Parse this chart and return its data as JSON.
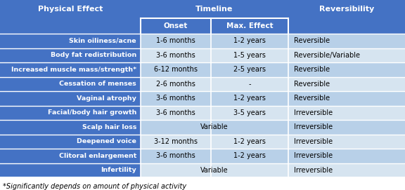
{
  "rows": [
    [
      "Skin oiliness/acne",
      "1-6 months",
      "1-2 years",
      "Reversible"
    ],
    [
      "Body fat redistribution",
      "3-6 months",
      "1-5 years",
      "Reversible/Variable"
    ],
    [
      "Increased muscle mass/strength*",
      "6-12 months",
      "2-5 years",
      "Reversible"
    ],
    [
      "Cessation of menses",
      "2-6 months",
      "-",
      "Reversible"
    ],
    [
      "Vaginal atrophy",
      "3-6 months",
      "1-2 years",
      "Reversible"
    ],
    [
      "Facial/body hair growth",
      "3-6 months",
      "3-5 years",
      "Irreversible"
    ],
    [
      "Scalp hair loss",
      "Variable",
      "",
      "Irreversible"
    ],
    [
      "Deepened voice",
      "3-12 months",
      "1-2 years",
      "Irreversible"
    ],
    [
      "Clitoral enlargement",
      "3-6 months",
      "1-2 years",
      "Irreversible"
    ],
    [
      "Infertility",
      "Variable",
      "",
      "Irreversible"
    ]
  ],
  "footnote": "*Significantly depends on amount of physical activity",
  "header_bg": "#4472C4",
  "header_text": "#FFFFFF",
  "row_bg_even": "#B8D0E8",
  "row_bg_odd": "#D6E4F0",
  "row_text": "#000000",
  "fig_w": 5.76,
  "fig_h": 2.71,
  "dpi": 100
}
